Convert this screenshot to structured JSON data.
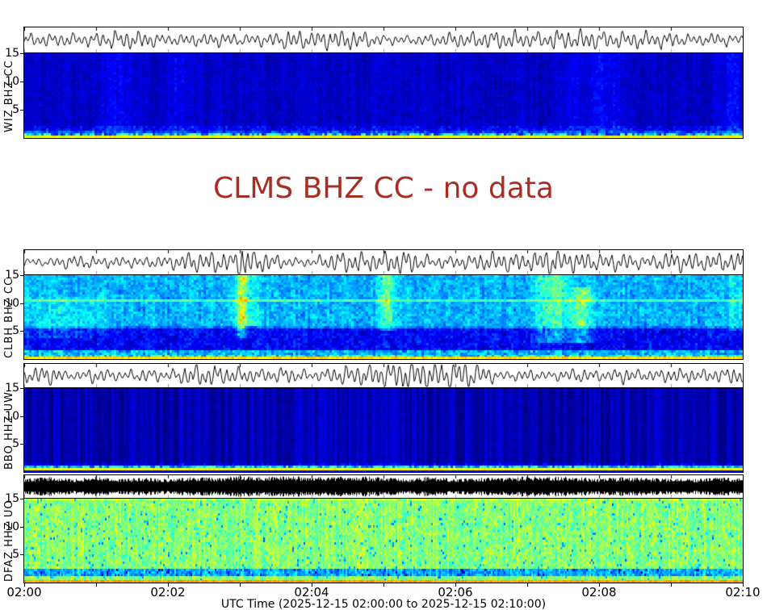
{
  "figure": {
    "no_data_title": "CLMS BHZ CC - no data",
    "no_data_color": "#aa2d23",
    "background": "#ffffff"
  },
  "x_axis": {
    "ticks": [
      "02:00",
      "02:02",
      "02:04",
      "02:06",
      "02:08",
      "02:10"
    ],
    "label": "UTC Time (2025-12-15 02:00:00 to 2025-12-15 02:10:00)",
    "minor_tick_interval_minutes": 1,
    "range_minutes": [
      0,
      10
    ]
  },
  "panels": [
    {
      "station": "WIZ BHZ CC",
      "yticks": [
        "15",
        "10",
        "5"
      ],
      "summary": "low-amplitude continuous waveform; very dark navy spectrogram with faint blue smudges near 02:01-02:02, 02:08 and 02:10, cyan speckle and bright yellow-green line at lowest frequencies",
      "render": {
        "seed": 11,
        "wave": {
          "amp": 16,
          "bursts": [
            [
              1.7,
              0.2,
              30
            ],
            [
              4.3,
              0.25,
              40
            ],
            [
              6.6,
              0.3,
              50
            ],
            [
              7.9,
              0.25,
              35
            ]
          ]
        },
        "spec": {
          "base": 0.02,
          "noise": 0.1,
          "colAmp": 0.04,
          "bands": [
            [
              0,
              2.2,
              0.1,
              true
            ],
            [
              0,
              1.4,
              0.12,
              true
            ]
          ],
          "streaks": [
            [
              1.3,
              0.25,
              0.06,
              0,
              15
            ],
            [
              2.1,
              0.15,
              0.05,
              0,
              15
            ],
            [
              8.1,
              0.3,
              0.07,
              0,
              15
            ],
            [
              9.85,
              0.12,
              0.09,
              0,
              15
            ],
            [
              7.6,
              0.1,
              0.05,
              0,
              15
            ]
          ],
          "floorF": 1.0,
          "floorBase": 0.12,
          "floorNoise": 0.38,
          "lineH": 3,
          "lineV": 0.62
        }
      }
    },
    {
      "station": "CLBH BHZ CC",
      "yticks": [
        "15",
        "10",
        "5"
      ],
      "summary": "busy waveform with spike near 02:03; mottled blue spectrogram, bright cyan streaks near 02:03, 02:05 and 02:07-02:08, darker band 2-5 Hz, light horizontal line near 10.5 Hz, yellow-green line at bottom",
      "render": {
        "seed": 23,
        "wave": {
          "amp": 18,
          "bursts": [
            [
              3.05,
              0.9,
              6
            ],
            [
              3.0,
              0.3,
              25
            ],
            [
              5.2,
              0.3,
              30
            ],
            [
              7.5,
              0.35,
              45
            ],
            [
              9.3,
              0.25,
              30
            ]
          ]
        },
        "spec": {
          "base": 0.12,
          "noise": 0.24,
          "colAmp": 0.05,
          "bands": [
            [
              6,
              15,
              0.06,
              false
            ],
            [
              1.8,
              5.5,
              -0.12,
              false
            ],
            [
              10.2,
              10.9,
              0.14,
              false
            ],
            [
              0,
              1.7,
              0.12,
              true
            ]
          ],
          "streaks": [
            [
              3.02,
              0.08,
              0.3,
              4,
              15
            ],
            [
              3.1,
              0.2,
              0.12,
              6,
              15
            ],
            [
              5.05,
              0.12,
              0.24,
              5,
              15
            ],
            [
              7.35,
              0.25,
              0.22,
              3,
              15
            ],
            [
              7.75,
              0.15,
              0.26,
              3,
              13
            ],
            [
              0.5,
              0.6,
              0.08,
              4,
              11
            ],
            [
              9.9,
              0.12,
              0.1,
              5,
              15
            ]
          ],
          "floorF": 1.0,
          "floorBase": 0.22,
          "floorNoise": 0.3,
          "lineH": 3,
          "lineV": 0.66
        }
      }
    },
    {
      "station": "BBO HHZ UW",
      "yticks": [
        "15",
        "10",
        "5"
      ],
      "summary": "moderate waveform with burst near 02:05-02:06; very dark navy spectrogram with faint vertical striations, cyan speckle band and bright yellow line just above the bottom edge",
      "render": {
        "seed": 37,
        "wave": {
          "amp": 17,
          "bursts": [
            [
              2.6,
              0.2,
              30
            ],
            [
              5.5,
              0.5,
              45
            ],
            [
              5.9,
              0.3,
              25
            ]
          ]
        },
        "spec": {
          "base": 0.02,
          "noise": 0.05,
          "colAmp": 0.09,
          "bands": [
            [
              0,
              1.7,
              0.09,
              true
            ]
          ],
          "streaks": [
            [
              4.5,
              1.5,
              0.02,
              0,
              15
            ]
          ],
          "floorF": 1.2,
          "floorBase": 0.18,
          "floorNoise": 0.3,
          "lineH": 3,
          "lineV": 0.62,
          "underH": 2,
          "underV": 0.12
        }
      }
    },
    {
      "station": "DFAZ HHZ UO",
      "yticks": [
        "15",
        "10",
        "5"
      ],
      "summary": "dense high-amplitude noise waveform (solid black band); bright cyan/green spectrogram mottled with yellow-green, scattered dark blue speckles, darker blue band near 2 Hz, yellow-orange line at bottom",
      "render": {
        "seed": 53,
        "wave": {
          "dense": true,
          "amp": 13
        },
        "spec": {
          "cw": 2,
          "base": 0.38,
          "noise": 0.26,
          "colAmp": 0.08,
          "speckle": [
            0.05,
            -0.2
          ],
          "bands": [
            [
              1.2,
              2.6,
              -0.16,
              false
            ],
            [
              1.2,
              2.6,
              -0.12,
              true
            ],
            [
              14.5,
              15,
              0.08,
              true
            ]
          ],
          "floorF": 0.6,
          "floorBase": 0.42,
          "floorNoise": 0.1,
          "lineH": 3,
          "lineV": 0.72
        }
      }
    }
  ],
  "chart_data": {
    "type": "heatmap",
    "subtype": "seismic station spectrograms with waveform strip per station (jet colormap: navy-blue-cyan-green-yellow)",
    "title": "CLMS BHZ CC - no data",
    "xlabel": "UTC Time (2025-12-15 02:00:00 to 2025-12-15 02:10:00)",
    "x_ticks": [
      "02:00",
      "02:02",
      "02:04",
      "02:06",
      "02:08",
      "02:10"
    ],
    "frequency_axis_hz": {
      "ticks": [
        15,
        10,
        5
      ],
      "range": [
        0,
        15
      ]
    },
    "stations": [
      "WIZ BHZ CC",
      "CLBH BHZ CC (no data for CLMS BHZ CC)",
      "BBO HHZ UW",
      "DFAZ HHZ UO"
    ],
    "notes": "Four spectrogram panels 02:00-02:10 UTC; WIZ and BBO show quiet dark-blue backgrounds with energetic band below ~2 Hz; CLBH shows broadband cyan bursts near 02:03, 02:05, 02:07-02:08; DFAZ shows saturated broadband noise (cyan/yellow-green) across 0-15 Hz; CLMS BHZ CC returned no data."
  }
}
